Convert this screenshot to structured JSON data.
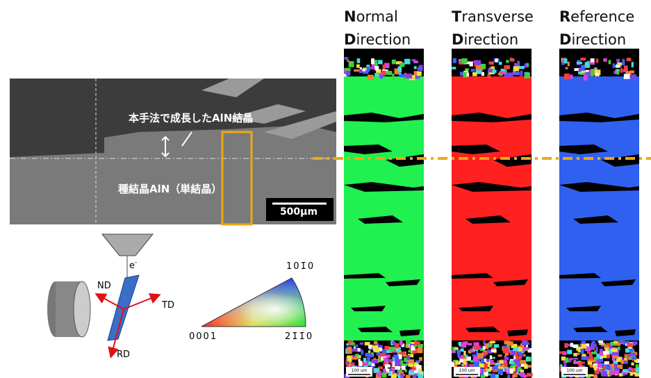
{
  "sem": {
    "growth_label": "本手法で成長したAlN結晶",
    "seed_label": "種結晶AlN（単結晶）",
    "scale_label": "500μm"
  },
  "diagram": {
    "beam_label": "e",
    "beam_sup": "-",
    "nd": "ND",
    "td": "TD",
    "rd": "RD"
  },
  "legend": {
    "top": "101̄0",
    "left": "0001",
    "right": "21̄1̄0"
  },
  "panels": [
    {
      "lines": [
        "Normal",
        "Direction"
      ],
      "scale": "100 um"
    },
    {
      "lines": [
        "Transverse",
        "Direction"
      ],
      "scale": "100 um"
    },
    {
      "lines": [
        "Reference",
        "Direction"
      ],
      "scale": "100 um"
    }
  ]
}
